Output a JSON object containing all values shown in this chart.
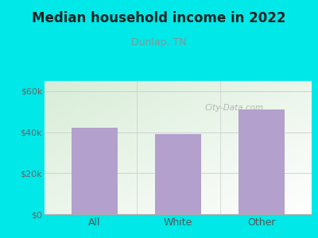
{
  "categories": [
    "All",
    "White",
    "Other"
  ],
  "values": [
    42000,
    39000,
    51000
  ],
  "bar_color": "#b3a0cc",
  "title": "Median household income in 2022",
  "subtitle": "Dunlap, TN",
  "subtitle_color": "#7a9a9a",
  "title_color": "#222222",
  "background_color": "#00e8e8",
  "plot_bg_top_left": "#d8edd8",
  "plot_bg_bottom_right": "#f8fff8",
  "ylim": [
    0,
    65000
  ],
  "yticks": [
    0,
    20000,
    40000,
    60000
  ],
  "ytick_labels": [
    "$0",
    "$20k",
    "$40k",
    "$60k"
  ],
  "watermark": "City-Data.com",
  "bar_width": 0.55,
  "title_fontsize": 12,
  "subtitle_fontsize": 9,
  "tick_fontsize": 8,
  "xtick_fontsize": 9
}
